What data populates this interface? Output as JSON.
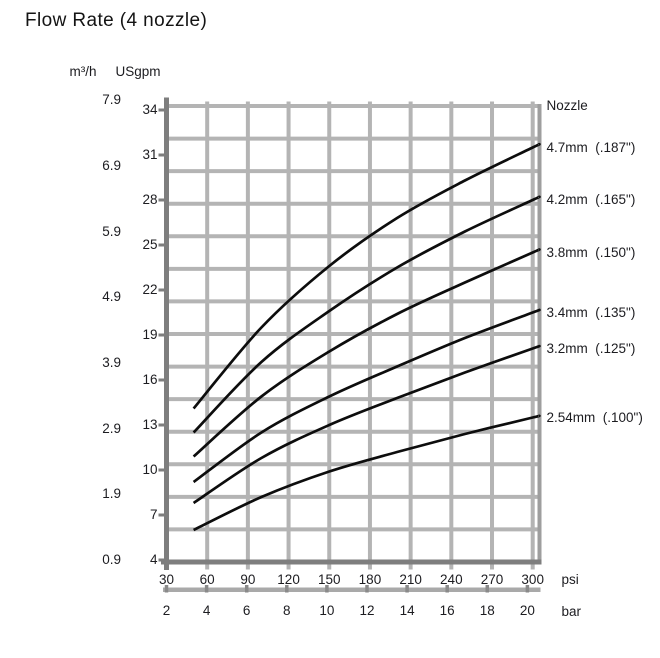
{
  "chart_data": {
    "type": "line",
    "title": "Flow Rate (4 nozzle)",
    "legend_title": "Nozzle",
    "legend_position": "right",
    "x_axis": {
      "label": "psi",
      "ticks": [
        30,
        60,
        90,
        120,
        150,
        180,
        210,
        240,
        270,
        300
      ],
      "range": [
        30,
        300
      ]
    },
    "x_axis_secondary": {
      "label": "bar",
      "ticks": [
        2,
        4,
        6,
        8,
        10,
        12,
        14,
        16,
        18,
        20
      ]
    },
    "y_axis": {
      "label": "USgpm",
      "ticks": [
        4,
        7,
        10,
        13,
        16,
        19,
        22,
        25,
        28,
        31,
        34
      ],
      "range": [
        4,
        34.4
      ]
    },
    "y_axis_secondary": {
      "label": "m³/h",
      "ticks": [
        0.9,
        1.9,
        2.9,
        3.9,
        4.9,
        5.9,
        6.9,
        7.9
      ]
    },
    "grid": {
      "horizontal_rows": 14,
      "vertical_at_psi_ticks": true
    },
    "points_psi": [
      50,
      100,
      150,
      200,
      250,
      300
    ],
    "series": [
      {
        "name": "4.7mm  (.187\")",
        "nozzle_mm": 4.7,
        "flow_usgpm": [
          14.1,
          19.5,
          23.6,
          26.8,
          29.3,
          31.5
        ]
      },
      {
        "name": "4.2mm  (.165\")",
        "nozzle_mm": 4.2,
        "flow_usgpm": [
          12.5,
          17.2,
          20.6,
          23.5,
          25.9,
          28.0
        ]
      },
      {
        "name": "3.8mm  (.150\")",
        "nozzle_mm": 3.8,
        "flow_usgpm": [
          10.9,
          14.9,
          17.9,
          20.4,
          22.5,
          24.5
        ]
      },
      {
        "name": "3.4mm  (.135\")",
        "nozzle_mm": 3.4,
        "flow_usgpm": [
          9.2,
          12.5,
          14.9,
          16.9,
          18.8,
          20.5
        ]
      },
      {
        "name": "3.2mm  (.125\")",
        "nozzle_mm": 3.2,
        "flow_usgpm": [
          7.8,
          10.8,
          13.0,
          14.8,
          16.5,
          18.1
        ]
      },
      {
        "name": "2.54mm  (.100\")",
        "nozzle_mm": 2.54,
        "flow_usgpm": [
          6.0,
          8.2,
          9.9,
          11.2,
          12.4,
          13.5
        ]
      }
    ],
    "colors": {
      "curve": "#0d0d0d",
      "grid": "#b4b4b4",
      "border": "#9e9e9e",
      "axis": "#7e7e7e",
      "ruler": "#a9a9a9",
      "ruler_tick": "#8a8a8a",
      "text": "#1c1c20"
    }
  }
}
